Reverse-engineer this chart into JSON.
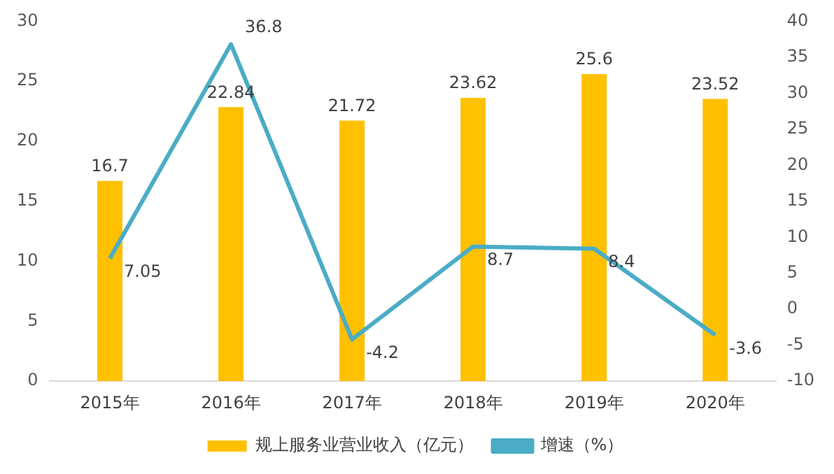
{
  "chart_data": {
    "type": "bar",
    "categories": [
      "2015年",
      "2016年",
      "2017年",
      "2018年",
      "2019年",
      "2020年"
    ],
    "series": [
      {
        "name": "规上服务业营业收入（亿元）",
        "color": "#ffc000",
        "values": [
          16.7,
          22.84,
          21.72,
          23.62,
          25.6,
          23.52
        ]
      },
      {
        "name": "增速（%）",
        "type": "line",
        "axis": "y2",
        "color": "#4bacc6",
        "values": [
          7.05,
          36.8,
          -4.2,
          8.7,
          8.4,
          -3.6
        ]
      }
    ],
    "ylim": [
      0,
      30
    ],
    "yticks": [
      0,
      5,
      10,
      15,
      20,
      25,
      30
    ],
    "y2lim": [
      -10,
      40
    ],
    "y2ticks": [
      -10,
      -5,
      0,
      5,
      10,
      15,
      20,
      25,
      30,
      35,
      40
    ],
    "grid": false,
    "legend": "bottom",
    "marker": "none",
    "line_style": "solid",
    "data_labels": true
  }
}
